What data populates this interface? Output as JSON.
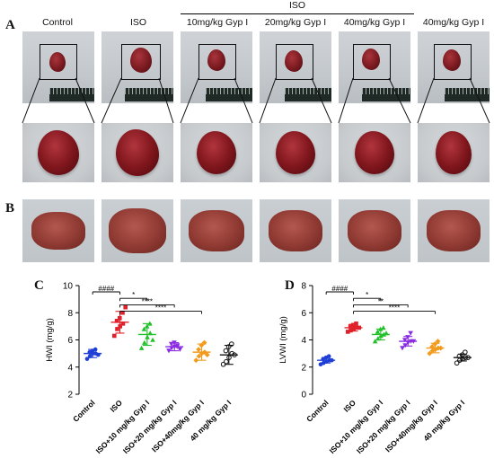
{
  "panels": {
    "a": "A",
    "b": "B",
    "c": "C",
    "d": "D"
  },
  "iso_group_label": "ISO",
  "groups": [
    "Control",
    "ISO",
    "10mg/kg Gyp I",
    "20mg/kg Gyp I",
    "40mg/kg Gyp I",
    "40mg/kg Gyp I"
  ],
  "colors": {
    "control": "#1f3fd6",
    "iso": "#e0202a",
    "iso10": "#22c02a",
    "iso20": "#8a2be2",
    "iso40": "#f29a1c",
    "gyp40": "#111111"
  },
  "chart_data": [
    {
      "type": "scatter",
      "title": "",
      "xlabel": "",
      "ylabel": "HWI (mg/g)",
      "ylim": [
        2,
        10
      ],
      "yticks": [
        "2",
        "4",
        "6",
        "8",
        "10"
      ],
      "categories": [
        "Control",
        "ISO",
        "ISO+10 mg/kg Gyp I",
        "ISO+20 mg/kg Gyp I",
        "ISO+40mg/kg Gyp I",
        "40 mg/kg Gyp I"
      ],
      "means": [
        5.0,
        7.3,
        6.4,
        5.5,
        5.1,
        4.9
      ],
      "sd": [
        0.3,
        0.8,
        0.8,
        0.3,
        0.6,
        0.7
      ],
      "points": [
        [
          4.6,
          4.8,
          5.0,
          5.0,
          5.1,
          5.2,
          5.3,
          4.9
        ],
        [
          6.3,
          6.8,
          7.0,
          7.2,
          7.4,
          7.6,
          8.0,
          8.4
        ],
        [
          5.4,
          5.8,
          6.2,
          6.5,
          6.8,
          7.0,
          7.2,
          6.0
        ],
        [
          5.2,
          5.4,
          5.5,
          5.6,
          5.7,
          5.8,
          5.5,
          5.3
        ],
        [
          4.5,
          4.8,
          5.0,
          5.1,
          5.3,
          5.6,
          5.8,
          4.9
        ],
        [
          4.2,
          4.4,
          4.7,
          5.0,
          5.2,
          5.5,
          5.7,
          4.9
        ]
      ],
      "annotations": [
        {
          "from": 0,
          "to": 1,
          "label": "####"
        },
        {
          "from": 1,
          "to": 2,
          "label": "*"
        },
        {
          "from": 1,
          "to": 3,
          "label": "****"
        },
        {
          "from": 1,
          "to": 4,
          "label": "****"
        }
      ]
    },
    {
      "type": "scatter",
      "title": "",
      "xlabel": "",
      "ylabel": "LVWI (mg/g)",
      "ylim": [
        0,
        8
      ],
      "yticks": [
        "0",
        "2",
        "4",
        "6",
        "8"
      ],
      "categories": [
        "Control",
        "ISO",
        "ISO+10 mg/kg Gyp I",
        "ISO+20 mg/kg Gyp I",
        "ISO+40mg/kg Gyp I",
        "40 mg/kg Gyp I"
      ],
      "means": [
        2.5,
        4.9,
        4.4,
        3.9,
        3.4,
        2.7
      ],
      "sd": [
        0.2,
        0.25,
        0.4,
        0.35,
        0.35,
        0.25
      ],
      "points": [
        [
          2.2,
          2.3,
          2.4,
          2.5,
          2.6,
          2.7,
          2.8,
          2.5
        ],
        [
          4.6,
          4.7,
          4.8,
          4.9,
          5.0,
          5.1,
          5.2,
          4.9
        ],
        [
          3.9,
          4.1,
          4.3,
          4.4,
          4.6,
          4.8,
          4.9,
          4.5
        ],
        [
          3.4,
          3.6,
          3.8,
          3.9,
          4.0,
          4.2,
          4.5,
          3.9
        ],
        [
          3.0,
          3.2,
          3.3,
          3.4,
          3.5,
          3.7,
          3.9,
          3.4
        ],
        [
          2.3,
          2.5,
          2.6,
          2.7,
          2.8,
          2.9,
          3.1,
          2.7
        ]
      ],
      "annotations": [
        {
          "from": 0,
          "to": 1,
          "label": "####"
        },
        {
          "from": 1,
          "to": 2,
          "label": "*"
        },
        {
          "from": 1,
          "to": 3,
          "label": "**"
        },
        {
          "from": 1,
          "to": 4,
          "label": "****"
        }
      ]
    }
  ]
}
